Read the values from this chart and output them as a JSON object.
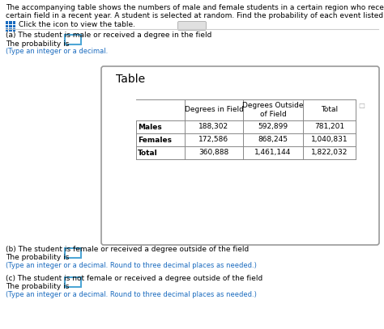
{
  "title_line1": "The accompanying table shows the numbers of male and female students in a certain region who received bachelor's degrees in a",
  "title_line2": "certain field in a recent year. A student is selected at random. Find the probability of each event listed in parts (a) through (c) below.",
  "click_text": "Click the icon to view the table.",
  "part_a_text": "(a) The student is male or received a degree in the field",
  "prob_label": "The probability is",
  "type_hint_a": "(Type an integer or a decimal.",
  "part_b_text": "(b) The student is female or received a degree outside of the field",
  "type_hint_b": "(Type an integer or a decimal. Round to three decimal places as needed.)",
  "part_c_text": "(c) The student is not female or received a degree outside of the field",
  "type_hint_c": "(Type an integer or a decimal. Round to three decimal places as needed.)",
  "table_title": "Table",
  "col_headers": [
    "Degrees in Field",
    "Degrees Outside\nof Field",
    "Total"
  ],
  "row_labels": [
    "Males",
    "Females",
    "Total"
  ],
  "table_data": [
    [
      "188,302",
      "592,899",
      "781,201"
    ],
    [
      "172,586",
      "868,245",
      "1,040,831"
    ],
    [
      "360,888",
      "1,461,144",
      "1,822,032"
    ]
  ],
  "bg_color": "#ffffff",
  "text_color": "#000000",
  "blue_color": "#1a6bbf",
  "box_border_color": "#4da6d6",
  "font_size_main": 6.5,
  "font_size_table": 6.5,
  "font_size_table_title": 10.0
}
